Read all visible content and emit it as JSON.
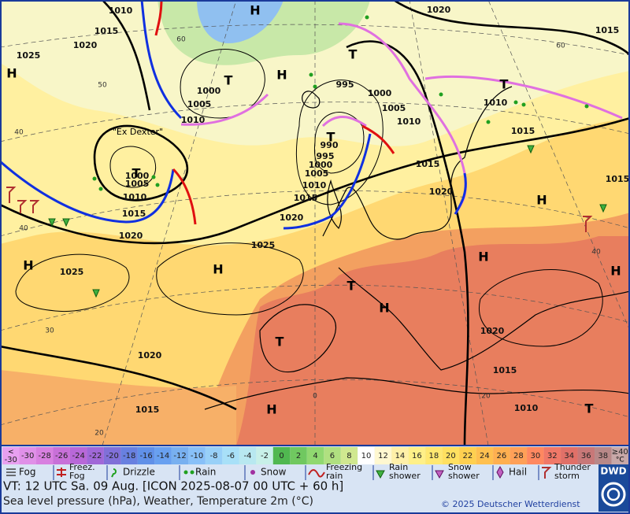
{
  "map": {
    "pressure_labels": [
      "1010",
      "1015",
      "1025",
      "1020",
      "1000",
      "1005",
      "1010",
      "995",
      "1000",
      "1005",
      "1010",
      "990",
      "995",
      "1000",
      "1005",
      "1010",
      "1015",
      "1020",
      "1000",
      "1005",
      "1010",
      "1015",
      "1020",
      "1025",
      "1025",
      "1020",
      "1015",
      "1020",
      "1015",
      "1010",
      "1015",
      "1015",
      "1020",
      "1015",
      "1020",
      "1015",
      "1010"
    ],
    "systems": [
      "H",
      "H",
      "T",
      "H",
      "T",
      "T",
      "T",
      "T",
      "H",
      "H",
      "H",
      "H",
      "T",
      "H",
      "T",
      "H",
      "H",
      "T"
    ],
    "grid_labels": [
      "60",
      "50",
      "40",
      "40",
      "30",
      "20",
      "60",
      "40",
      "0",
      "20"
    ],
    "annotation": "\"Ex Dexter\""
  },
  "temperature_scale": [
    {
      "top": "<",
      "label": "-30",
      "color": "#e8a0f0"
    },
    {
      "label": "-30",
      "color": "#e090e8"
    },
    {
      "label": "-28",
      "color": "#d880e0"
    },
    {
      "label": "-26",
      "color": "#c870d8"
    },
    {
      "label": "-24",
      "color": "#b868d8"
    },
    {
      "label": "-22",
      "color": "#a068d8"
    },
    {
      "label": "-20",
      "color": "#8070d8"
    },
    {
      "label": "-18",
      "color": "#6880e0"
    },
    {
      "label": "-16",
      "color": "#6090e8"
    },
    {
      "label": "-14",
      "color": "#68a0f0"
    },
    {
      "label": "-12",
      "color": "#78b0f0"
    },
    {
      "label": "-10",
      "color": "#88c0f8"
    },
    {
      "label": "-8",
      "color": "#98d0f8"
    },
    {
      "label": "-6",
      "color": "#a8e0f8"
    },
    {
      "label": "-4",
      "color": "#b8e8f0"
    },
    {
      "label": "-2",
      "color": "#c8f0e8"
    },
    {
      "label": "0",
      "color": "#50b850"
    },
    {
      "label": "2",
      "color": "#70c860"
    },
    {
      "label": "4",
      "color": "#90d870"
    },
    {
      "label": "6",
      "color": "#b0e080"
    },
    {
      "label": "8",
      "color": "#d0e890"
    },
    {
      "label": "10",
      "color": "#ffffff"
    },
    {
      "label": "12",
      "color": "#fff8d0"
    },
    {
      "label": "14",
      "color": "#fff0a8"
    },
    {
      "label": "16",
      "color": "#fff088"
    },
    {
      "label": "18",
      "color": "#ffe870"
    },
    {
      "label": "20",
      "color": "#ffe060"
    },
    {
      "label": "22",
      "color": "#ffd050"
    },
    {
      "label": "24",
      "color": "#ffc050"
    },
    {
      "label": "26",
      "color": "#ffb050"
    },
    {
      "label": "28",
      "color": "#ffa058"
    },
    {
      "label": "30",
      "color": "#ff8860"
    },
    {
      "label": "32",
      "color": "#f07868"
    },
    {
      "label": "34",
      "color": "#e07068"
    },
    {
      "label": "36",
      "color": "#c87878"
    },
    {
      "label": "38",
      "color": "#b88888"
    },
    {
      "label": "≥40",
      "bottom": "°C",
      "color": "#c8a8a8"
    }
  ],
  "weather_legend": [
    {
      "lines": [
        "Fog"
      ]
    },
    {
      "lines": [
        "Freez.",
        "Fog"
      ]
    },
    {
      "lines": [
        "Drizzle"
      ]
    },
    {
      "lines": [
        "Rain"
      ]
    },
    {
      "lines": [
        "Snow"
      ]
    },
    {
      "lines": [
        "Freezing",
        "rain"
      ]
    },
    {
      "lines": [
        "Rain",
        "shower"
      ]
    },
    {
      "lines": [
        "Snow",
        "shower"
      ]
    },
    {
      "lines": [
        "Hail"
      ]
    },
    {
      "lines": [
        "Thunder",
        "storm"
      ]
    }
  ],
  "footer": {
    "valid_time": "VT: 12 UTC Sa.  09 Aug. [ICON 2025-08-07  00 UTC + 60 h]",
    "description": "Sea level pressure (hPa), Weather, Temperature 2m (°C)",
    "copyright": "© 2025 Deutscher Wetterdienst",
    "logo": "DWD"
  }
}
